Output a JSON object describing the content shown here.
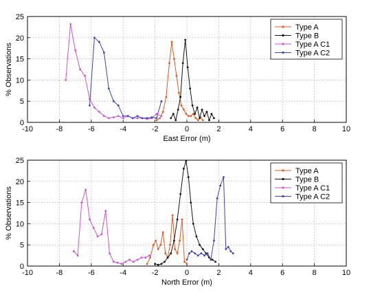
{
  "chart_data": [
    {
      "type": "line",
      "xlabel": "East Error (m)",
      "ylabel": "% Observations",
      "xlim": [
        -10,
        10
      ],
      "ylim": [
        0,
        25
      ],
      "x_ticks": [
        "-10",
        "-8",
        "-6",
        "-4",
        "-2",
        "0",
        "2",
        "4",
        "6",
        "8",
        "10"
      ],
      "y_ticks": [
        "0",
        "5",
        "10",
        "15",
        "20",
        "25"
      ],
      "grid": true,
      "legend_position": "top-right",
      "series": [
        {
          "name": "Type A",
          "color": "#e8551d",
          "x": [
            -1.9,
            -1.7,
            -1.5,
            -1.3,
            -1.1,
            -0.95,
            -0.8,
            -0.65,
            -0.5,
            -0.35,
            -0.2,
            -0.05,
            0.1,
            0.25,
            0.4,
            0.55,
            0.7,
            0.85,
            1.0
          ],
          "y": [
            0.5,
            1.0,
            2.5,
            6.0,
            14.0,
            19.0,
            15.0,
            11.0,
            7.0,
            4.0,
            3.0,
            2.0,
            1.5,
            1.5,
            2.0,
            1.0,
            0.5,
            1.2,
            0.5
          ]
        },
        {
          "name": "Type B",
          "color": "#111111",
          "x": [
            -1.0,
            -0.85,
            -0.7,
            -0.55,
            -0.4,
            -0.25,
            -0.1,
            0.05,
            0.2,
            0.35,
            0.5,
            0.65,
            0.8,
            0.95,
            1.1,
            1.25,
            1.4,
            1.55,
            1.7
          ],
          "y": [
            1.0,
            2.0,
            0.5,
            3.0,
            6.0,
            14.0,
            19.5,
            13.0,
            8.0,
            4.0,
            2.0,
            3.5,
            1.0,
            3.0,
            1.5,
            2.5,
            0.5,
            2.0,
            1.0
          ]
        },
        {
          "name": "Type A C1",
          "color": "#d04fd6",
          "x": [
            -7.6,
            -7.3,
            -7.0,
            -6.7,
            -6.4,
            -6.1,
            -5.8,
            -5.5,
            -5.2,
            -4.9,
            -4.6,
            -4.3,
            -4.0,
            -3.7,
            -3.4,
            -3.1,
            -2.8,
            -2.5,
            -2.2,
            -1.9,
            -1.6
          ],
          "y": [
            10.0,
            23.2,
            17.0,
            12.5,
            11.0,
            5.5,
            3.5,
            2.5,
            1.5,
            1.0,
            1.2,
            1.5,
            1.0,
            1.5,
            1.0,
            1.0,
            1.0,
            0.8,
            1.0,
            2.0,
            1.5
          ]
        },
        {
          "name": "Type A C2",
          "color": "#3b3fc4",
          "x": [
            -6.1,
            -5.8,
            -5.5,
            -5.2,
            -4.9,
            -4.6,
            -4.3,
            -4.0,
            -3.7,
            -3.4,
            -3.1,
            -2.8,
            -2.5,
            -2.2,
            -1.9,
            -1.6
          ],
          "y": [
            4.0,
            20.0,
            19.0,
            16.5,
            8.0,
            5.0,
            4.0,
            1.5,
            1.5,
            1.0,
            1.5,
            1.0,
            1.0,
            1.2,
            1.0,
            5.0
          ]
        }
      ]
    },
    {
      "type": "line",
      "xlabel": "North Error (m)",
      "ylabel": "% Observations",
      "xlim": [
        -10,
        10
      ],
      "ylim": [
        0,
        25
      ],
      "x_ticks": [
        "-10",
        "-8",
        "-6",
        "-4",
        "-2",
        "0",
        "2",
        "4",
        "6",
        "8",
        "10"
      ],
      "y_ticks": [
        "0",
        "5",
        "10",
        "15",
        "20",
        "25"
      ],
      "grid": true,
      "legend_position": "top-right",
      "series": [
        {
          "name": "Type A",
          "color": "#e8551d",
          "x": [
            -2.5,
            -2.3,
            -2.1,
            -1.95,
            -1.8,
            -1.65,
            -1.5,
            -1.35,
            -1.2,
            -1.05,
            -0.9,
            -0.75,
            -0.6,
            -0.45,
            -0.3,
            -0.15,
            0.0
          ],
          "y": [
            0.5,
            2.0,
            5.0,
            6.0,
            4.0,
            5.0,
            8.0,
            3.0,
            2.0,
            5.0,
            12.0,
            4.0,
            3.0,
            6.0,
            11.0,
            1.0,
            0.5
          ]
        },
        {
          "name": "Type B",
          "color": "#111111",
          "x": [
            -2.0,
            -1.8,
            -1.6,
            -1.4,
            -1.2,
            -1.0,
            -0.8,
            -0.6,
            -0.4,
            -0.2,
            -0.05,
            0.1,
            0.25,
            0.4,
            0.6,
            0.8,
            1.0,
            1.2,
            1.4,
            1.6,
            1.8
          ],
          "y": [
            0.5,
            0.3,
            0.5,
            1.0,
            2.0,
            3.0,
            6.0,
            11.0,
            17.0,
            23.0,
            24.8,
            21.0,
            15.0,
            10.0,
            7.0,
            5.0,
            4.0,
            3.0,
            2.0,
            1.5,
            1.0
          ]
        },
        {
          "name": "Type A C1",
          "color": "#d04fd6",
          "x": [
            -7.1,
            -6.85,
            -6.6,
            -6.35,
            -6.1,
            -5.85,
            -5.6,
            -5.35,
            -5.1,
            -4.85,
            -4.6,
            -4.35,
            -4.1,
            -3.85,
            -3.6,
            -3.35,
            -3.1,
            -2.85,
            -2.6,
            -2.35
          ],
          "y": [
            3.5,
            2.5,
            15.0,
            18.0,
            11.0,
            9.0,
            7.0,
            7.5,
            13.0,
            3.0,
            1.0,
            0.8,
            0.5,
            1.0,
            1.5,
            1.0,
            1.5,
            2.0,
            2.0,
            2.5
          ]
        },
        {
          "name": "Type A C2",
          "color": "#3b3fc4",
          "x": [
            0.0,
            0.15,
            0.3,
            0.5,
            0.7,
            0.9,
            1.1,
            1.3,
            1.5,
            1.7,
            1.9,
            2.1,
            2.3,
            2.45,
            2.6,
            2.75,
            2.9
          ],
          "y": [
            1.5,
            3.0,
            3.5,
            3.0,
            2.5,
            3.0,
            2.5,
            3.0,
            1.5,
            6.0,
            16.0,
            19.0,
            21.0,
            4.0,
            4.5,
            3.5,
            3.0
          ]
        }
      ]
    }
  ]
}
